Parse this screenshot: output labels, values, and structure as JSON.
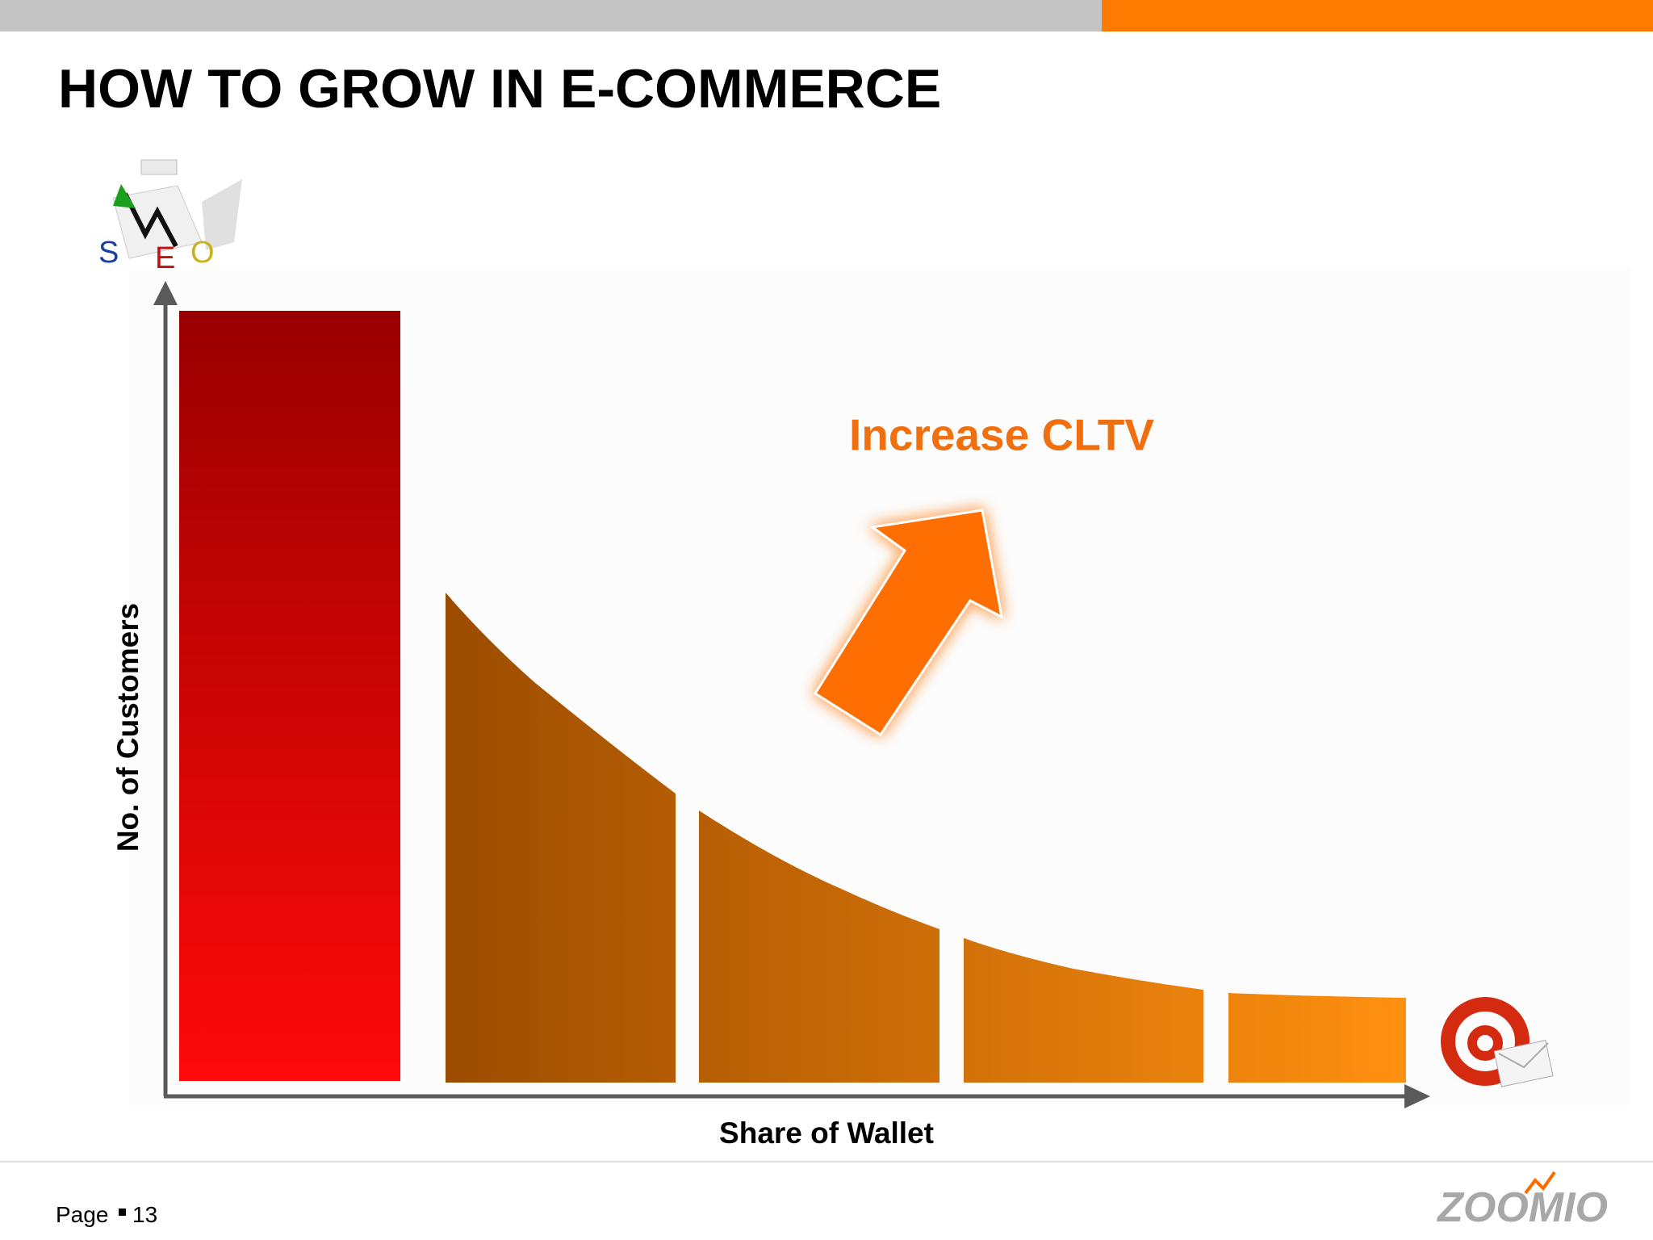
{
  "header": {
    "title": "HOW TO GROW IN E-COMMERCE"
  },
  "diagram": {
    "annotation": "Increase CLTV",
    "y_axis_label": "No. of Customers",
    "x_axis_label": "Share of Wallet",
    "seo_icon": [
      "S",
      "E",
      "O"
    ]
  },
  "footer": {
    "page_label": "Page",
    "page_number": "13",
    "brand": "ZOOMIO"
  }
}
